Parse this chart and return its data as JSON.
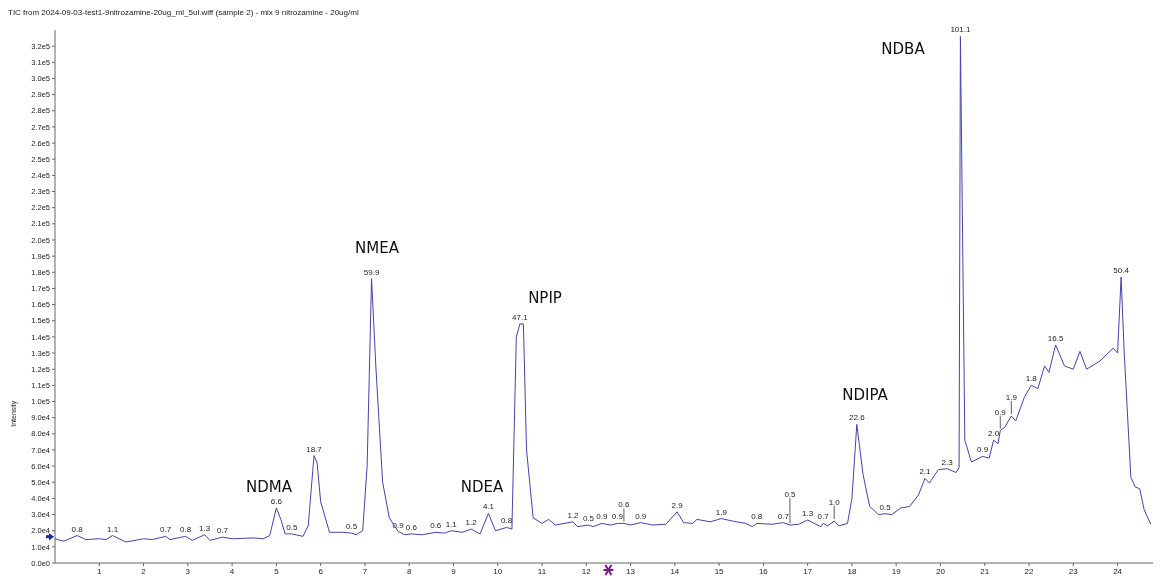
{
  "chart_data": {
    "type": "line",
    "title": "TIC from 2024-09-03-test1-9nitrozamine-20ug_ml_5ul.wiff (sample 2) - mix 9 nitrozamine - 20ug/ml",
    "ylabel": "Intensity",
    "x": [
      0,
      0.2,
      0.5,
      0.7,
      1.0,
      1.15,
      1.3,
      1.6,
      2.0,
      2.2,
      2.5,
      2.6,
      2.95,
      3.1,
      3.38,
      3.5,
      3.78,
      4.0,
      4.5,
      4.7,
      4.85,
      5.0,
      5.1,
      5.2,
      5.35,
      5.6,
      5.72,
      5.85,
      5.92,
      6.0,
      6.2,
      6.5,
      6.7,
      6.8,
      6.95,
      7.05,
      7.15,
      7.25,
      7.4,
      7.55,
      7.75,
      7.9,
      8.05,
      8.3,
      8.6,
      8.8,
      8.95,
      9.2,
      9.4,
      9.6,
      9.79,
      9.95,
      10.2,
      10.32,
      10.42,
      10.5,
      10.58,
      10.65,
      10.8,
      11.0,
      11.15,
      11.3,
      11.7,
      11.8,
      12.05,
      12.15,
      12.35,
      12.55,
      12.7,
      12.85,
      13.0,
      13.23,
      13.5,
      13.8,
      14.05,
      14.2,
      14.4,
      14.5,
      14.8,
      15.05,
      15.3,
      15.6,
      15.75,
      15.85,
      16.2,
      16.45,
      16.6,
      16.8,
      17.0,
      17.3,
      17.35,
      17.45,
      17.6,
      17.7,
      17.9,
      18.0,
      18.11,
      18.25,
      18.4,
      18.6,
      18.75,
      18.9,
      19.1,
      19.3,
      19.5,
      19.65,
      19.75,
      19.95,
      20.15,
      20.35,
      20.42,
      20.45,
      20.55,
      20.7,
      20.95,
      21.1,
      21.2,
      21.3,
      21.35,
      21.45,
      21.6,
      21.7,
      21.9,
      22.05,
      22.2,
      22.35,
      22.45,
      22.6,
      22.8,
      23.0,
      23.15,
      23.3,
      23.6,
      23.9,
      24.0,
      24.08,
      24.15,
      24.3,
      24.4,
      24.5,
      24.6,
      24.75
    ],
    "series": [
      {
        "color": "#4444aa",
        "values": [
          15000,
          13500,
          17000,
          14500,
          15000,
          14500,
          17000,
          13000,
          15000,
          14500,
          16500,
          14500,
          16500,
          14000,
          17500,
          14000,
          16000,
          15000,
          15500,
          15000,
          17000,
          34100,
          27000,
          18000,
          18000,
          16500,
          23000,
          66500,
          62000,
          38000,
          19000,
          19000,
          18500,
          17500,
          20000,
          60000,
          176000,
          120000,
          50000,
          28000,
          19500,
          17500,
          18000,
          17500,
          19000,
          18500,
          20000,
          19000,
          21000,
          18000,
          30700,
          20000,
          22000,
          21000,
          140000,
          148000,
          148000,
          70000,
          28000,
          24500,
          27000,
          23500,
          25500,
          22500,
          23500,
          22500,
          24500,
          23500,
          24500,
          24500,
          23500,
          25000,
          23500,
          24000,
          31700,
          25000,
          24500,
          27000,
          25500,
          27500,
          26000,
          24500,
          22500,
          24500,
          24000,
          25000,
          23500,
          24000,
          26600,
          22500,
          24500,
          23000,
          26000,
          23000,
          24500,
          40000,
          85800,
          55000,
          35000,
          30000,
          30500,
          30000,
          34000,
          35000,
          42000,
          52400,
          49500,
          57800,
          58400,
          56000,
          59000,
          326000,
          76000,
          62500,
          66000,
          65000,
          76000,
          74000,
          82000,
          84000,
          91000,
          88000,
          103000,
          110000,
          108000,
          122000,
          118000,
          135000,
          122000,
          120000,
          131000,
          120000,
          125000,
          133000,
          130000,
          177000,
          130000,
          53000,
          47000,
          46000,
          33000,
          24000
        ]
      }
    ],
    "annotations": [
      "NDMA",
      "NMEA",
      "NDEA",
      "NPIP",
      "NDIPA",
      "NDBA",
      {
        "text": "0.8",
        "x": 0.5,
        "y": 17000
      },
      {
        "text": "1.1",
        "x": 1.3,
        "y": 17000
      },
      {
        "text": "0.7",
        "x": 2.5,
        "y": 16500
      },
      {
        "text": "0.8",
        "x": 2.95,
        "y": 16500
      },
      {
        "text": "1.3",
        "x": 3.38,
        "y": 17500
      },
      {
        "text": "0.7",
        "x": 3.78,
        "y": 16000
      },
      {
        "text": "6.6",
        "x": 5.0,
        "y": 34100
      },
      {
        "text": "0.5",
        "x": 5.35,
        "y": 18000
      },
      {
        "text": "18.7",
        "x": 5.85,
        "y": 66500
      },
      {
        "text": "0.5",
        "x": 6.7,
        "y": 18500
      },
      {
        "text": "59.9",
        "x": 7.15,
        "y": 176000
      },
      {
        "text": "0.9",
        "x": 7.75,
        "y": 19500
      },
      {
        "text": "0.6",
        "x": 8.05,
        "y": 18000
      },
      {
        "text": "0.6",
        "x": 8.6,
        "y": 19000
      },
      {
        "text": "1.1",
        "x": 8.95,
        "y": 20000
      },
      {
        "text": "1.2",
        "x": 9.4,
        "y": 21000
      },
      {
        "text": "4.1",
        "x": 9.79,
        "y": 30700
      },
      {
        "text": "0.8",
        "x": 10.2,
        "y": 22000
      },
      {
        "text": "47.1",
        "x": 10.5,
        "y": 148000
      },
      {
        "text": "1.2",
        "x": 11.7,
        "y": 25500
      },
      {
        "text": "0.5",
        "x": 12.05,
        "y": 23500
      },
      {
        "text": "0.9",
        "x": 12.35,
        "y": 24500
      },
      {
        "text": "0.9",
        "x": 12.7,
        "y": 24500
      },
      {
        "text": "0.6",
        "x": 12.85,
        "y": 24500
      },
      {
        "text": "0.9",
        "x": 13.23,
        "y": 25000
      },
      {
        "text": "2.9",
        "x": 14.05,
        "y": 31700
      },
      {
        "text": "1.9",
        "x": 15.05,
        "y": 27500
      },
      {
        "text": "0.8",
        "x": 15.85,
        "y": 24500
      },
      {
        "text": "0.7",
        "x": 16.45,
        "y": 25000
      },
      {
        "text": "0.5",
        "x": 16.6,
        "y": 23500
      },
      {
        "text": "1.3",
        "x": 17.0,
        "y": 26600
      },
      {
        "text": "0.7",
        "x": 17.35,
        "y": 24500
      },
      {
        "text": "1.0",
        "x": 17.6,
        "y": 26000
      },
      {
        "text": "22.6",
        "x": 18.11,
        "y": 85800
      },
      {
        "text": "0.5",
        "x": 18.75,
        "y": 30500
      },
      {
        "text": "2.1",
        "x": 19.65,
        "y": 52400
      },
      {
        "text": "2.3",
        "x": 20.15,
        "y": 58400
      },
      {
        "text": "101.1",
        "x": 20.45,
        "y": 326000
      },
      {
        "text": "0.9",
        "x": 20.95,
        "y": 66000
      },
      {
        "text": "2.0",
        "x": 21.2,
        "y": 76000
      },
      {
        "text": "0.9",
        "x": 21.35,
        "y": 82000
      },
      {
        "text": "1.9",
        "x": 21.6,
        "y": 91000
      },
      {
        "text": "1.8",
        "x": 22.05,
        "y": 110000
      },
      {
        "text": "16.5",
        "x": 22.6,
        "y": 135000
      },
      {
        "text": "50.4",
        "x": 24.08,
        "y": 177000
      }
    ],
    "xlim": [
      0,
      24.8
    ],
    "xticks": [
      1,
      2,
      3,
      4,
      5,
      6,
      7,
      8,
      9,
      10,
      11,
      12,
      13,
      14,
      15,
      16,
      17,
      18,
      19,
      20,
      21,
      22,
      23,
      24
    ],
    "ylim": [
      0,
      330000
    ],
    "yticks": [
      {
        "value": 0,
        "label": "0.0e0"
      },
      {
        "value": 10000,
        "label": "1.0e4"
      },
      {
        "value": 20000,
        "label": "2.0e4"
      },
      {
        "value": 30000,
        "label": "3.0e4"
      },
      {
        "value": 40000,
        "label": "4.0e4"
      },
      {
        "value": 50000,
        "label": "5.0e4"
      },
      {
        "value": 60000,
        "label": "6.0e4"
      },
      {
        "value": 70000,
        "label": "7.0e4"
      },
      {
        "value": 80000,
        "label": "8.0e4"
      },
      {
        "value": 90000,
        "label": "9.0e4"
      },
      {
        "value": 100000,
        "label": "1.0e5"
      },
      {
        "value": 110000,
        "label": "1.1e5"
      },
      {
        "value": 120000,
        "label": "1.2e5"
      },
      {
        "value": 130000,
        "label": "1.3e5"
      },
      {
        "value": 140000,
        "label": "1.4e5"
      },
      {
        "value": 150000,
        "label": "1.5e5"
      },
      {
        "value": 160000,
        "label": "1.6e5"
      },
      {
        "value": 170000,
        "label": "1.7e5"
      },
      {
        "value": 180000,
        "label": "1.8e5"
      },
      {
        "value": 190000,
        "label": "1.9e5"
      },
      {
        "value": 200000,
        "label": "2.0e5"
      },
      {
        "value": 210000,
        "label": "2.1e5"
      },
      {
        "value": 220000,
        "label": "2.2e5"
      },
      {
        "value": 230000,
        "label": "2.3e5"
      },
      {
        "value": 240000,
        "label": "2.4e5"
      },
      {
        "value": 250000,
        "label": "2.5e5"
      },
      {
        "value": 260000,
        "label": "2.6e5"
      },
      {
        "value": 270000,
        "label": "2.7e5"
      },
      {
        "value": 280000,
        "label": "2.8e5"
      },
      {
        "value": 290000,
        "label": "2.9e5"
      },
      {
        "value": 300000,
        "label": "3.0e5"
      },
      {
        "value": 310000,
        "label": "3.1e5"
      },
      {
        "value": 320000,
        "label": "3.2e5"
      }
    ],
    "grid": false,
    "legend": false,
    "marker": "none",
    "line_style": "solid"
  }
}
